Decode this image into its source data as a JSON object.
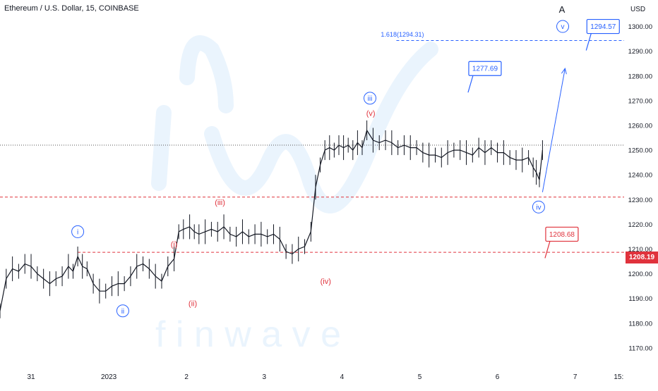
{
  "header": {
    "title": "Ethereum / U.S. Dollar, 15, COINBASE",
    "currency": "USD"
  },
  "price_tag": {
    "value": "1208.19",
    "color": "#e0323c"
  },
  "watermark": {
    "text": "f i n w a v e"
  },
  "colors": {
    "blue": "#2962ff",
    "red": "#e0323c",
    "candle": "#131722",
    "watermark": "#eaf4fd"
  },
  "chart_data": {
    "type": "line",
    "title": "Ethereum / U.S. Dollar, 15, COINBASE",
    "ylabel": "USD",
    "ylim": [
      1162,
      1305
    ],
    "y_ticks": [
      "1170.00",
      "1180.00",
      "1190.00",
      "1200.00",
      "1210.00",
      "1220.00",
      "1230.00",
      "1240.00",
      "1250.00",
      "1260.00",
      "1270.00",
      "1280.00",
      "1290.00",
      "1300.00"
    ],
    "y_tick_values": [
      1170,
      1180,
      1190,
      1200,
      1210,
      1220,
      1230,
      1240,
      1250,
      1260,
      1270,
      1280,
      1290,
      1300
    ],
    "x_ticks": [
      "31",
      "2023",
      "2",
      "3",
      "4",
      "5",
      "6",
      "7",
      "15:"
    ],
    "x_tick_values": [
      0.4,
      1.4,
      2.4,
      3.4,
      4.4,
      5.4,
      6.4,
      7.4,
      7.96
    ],
    "xlim": [
      0,
      8.03
    ],
    "grid": false,
    "series": [
      {
        "x": [
          0.0,
          0.08,
          0.16,
          0.24,
          0.32,
          0.4,
          0.48,
          0.56,
          0.64,
          0.72,
          0.8,
          0.88,
          0.94,
          1.0,
          1.06,
          1.12,
          1.2,
          1.28,
          1.36,
          1.44,
          1.52,
          1.6,
          1.68,
          1.76,
          1.84,
          1.92,
          2.0,
          2.08,
          2.16,
          2.24,
          2.3,
          2.36,
          2.44,
          2.5,
          2.56,
          2.64,
          2.72,
          2.8,
          2.88,
          2.96,
          3.04,
          3.12,
          3.2,
          3.28,
          3.36,
          3.44,
          3.52,
          3.6,
          3.68,
          3.76,
          3.84,
          3.92,
          4.0,
          4.06,
          4.12,
          4.18,
          4.24,
          4.3,
          4.36,
          4.42,
          4.48,
          4.54,
          4.6,
          4.66,
          4.72,
          4.8,
          4.88,
          4.96,
          5.04,
          5.12,
          5.2,
          5.28,
          5.36,
          5.44,
          5.52,
          5.6,
          5.68,
          5.76,
          5.84,
          5.92,
          6.0,
          6.08,
          6.16,
          6.24,
          6.32,
          6.4,
          6.48,
          6.56,
          6.64,
          6.72,
          6.8,
          6.86,
          6.9,
          6.94,
          6.98
        ],
        "y": [
          1185,
          1198,
          1202,
          1201,
          1204,
          1203,
          1200,
          1198,
          1196,
          1198,
          1199,
          1203,
          1201,
          1207,
          1203,
          1202,
          1196,
          1193,
          1193,
          1195,
          1196,
          1196,
          1199,
          1203,
          1204,
          1202,
          1199,
          1197,
          1203,
          1206,
          1217,
          1218,
          1219,
          1217,
          1216,
          1217,
          1218,
          1217,
          1219,
          1216,
          1215,
          1217,
          1215,
          1216,
          1216,
          1215,
          1216,
          1214,
          1209,
          1208,
          1210,
          1211,
          1217,
          1235,
          1244,
          1250,
          1251,
          1250,
          1252,
          1251,
          1252,
          1250,
          1253,
          1251,
          1258,
          1254,
          1253,
          1254,
          1253,
          1251,
          1252,
          1251,
          1251,
          1249,
          1248,
          1248,
          1247,
          1249,
          1250,
          1250,
          1249,
          1248,
          1251,
          1249,
          1251,
          1249,
          1249,
          1247,
          1246,
          1246,
          1247,
          1243,
          1241,
          1238,
          1250
        ]
      }
    ],
    "horizontal_lines": [
      {
        "y": 1231,
        "style": "red-dashed"
      },
      {
        "y": 1208.68,
        "style": "red-dashed"
      },
      {
        "y": 1294.31,
        "style": "blue-dashed"
      },
      {
        "y": 1252,
        "style": "black-dotted"
      }
    ],
    "projection": {
      "from": [
        6.98,
        1233
      ],
      "to": [
        7.27,
        1283
      ]
    },
    "annotations": [
      {
        "text": "i",
        "x": 1.0,
        "y": 1217,
        "style": "blue-circle"
      },
      {
        "text": "ii",
        "x": 1.58,
        "y": 1185,
        "style": "blue-circle"
      },
      {
        "text": "iii",
        "x": 4.76,
        "y": 1271,
        "style": "blue-circle"
      },
      {
        "text": "iv",
        "x": 6.93,
        "y": 1227,
        "style": "blue-circle"
      },
      {
        "text": "v",
        "x": 7.24,
        "y": 1300,
        "style": "blue-circle"
      },
      {
        "text": "(i)",
        "x": 2.24,
        "y": 1212,
        "style": "red"
      },
      {
        "text": "(ii)",
        "x": 2.48,
        "y": 1188,
        "style": "red"
      },
      {
        "text": "(iii)",
        "x": 2.83,
        "y": 1229,
        "style": "red"
      },
      {
        "text": "(iv)",
        "x": 4.19,
        "y": 1197,
        "style": "red"
      },
      {
        "text": "(v)",
        "x": 4.77,
        "y": 1265,
        "style": "red"
      },
      {
        "text": "A",
        "x": 7.23,
        "y": 1307,
        "style": "black"
      },
      {
        "text": "1.618(1294.31)",
        "x": 4.9,
        "y": 1297,
        "style": "blue-small"
      }
    ],
    "callouts": [
      {
        "text": "1277.69",
        "x": 6.24,
        "y": 1283,
        "style": "blue"
      },
      {
        "text": "1294.57",
        "x": 7.76,
        "y": 1300,
        "style": "blue"
      },
      {
        "text": "1208.68",
        "x": 7.23,
        "y": 1216,
        "style": "red"
      }
    ]
  }
}
